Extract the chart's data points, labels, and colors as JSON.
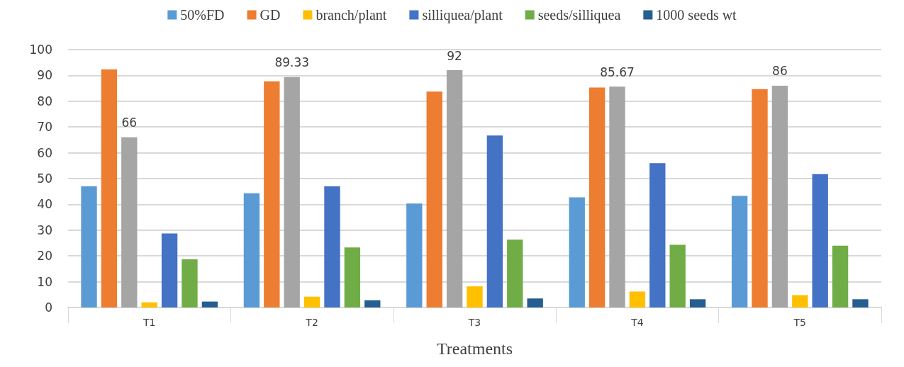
{
  "chart_data": {
    "type": "bar",
    "xlabel": "Treatments",
    "categories": [
      "T1",
      "T2",
      "T3",
      "T4",
      "T5"
    ],
    "series": [
      {
        "name": "50%FD",
        "color": "#5b9bd5",
        "values": [
          47,
          44.3,
          40.3,
          42.7,
          43.3
        ]
      },
      {
        "name": "GD",
        "color": "#ed7d31",
        "values": [
          92.3,
          87.7,
          83.7,
          85.3,
          84.7
        ]
      },
      {
        "color": "#a5a5a5",
        "values": [
          66,
          89.33,
          92,
          85.67,
          86
        ],
        "value_labels": [
          "66",
          "89.33",
          "92",
          "85.67",
          "86"
        ]
      },
      {
        "name": "branch/plant",
        "color": "#ffc000",
        "values": [
          2,
          4.2,
          8.2,
          6.2,
          4.8
        ]
      },
      {
        "name": "silliquea/plant",
        "color": "#4472c4",
        "values": [
          28.7,
          47,
          66.7,
          56,
          51.7
        ]
      },
      {
        "name": "seeds/silliquea",
        "color": "#70ad47",
        "values": [
          18.7,
          23.3,
          26.3,
          24.3,
          24
        ]
      },
      {
        "name": "1000 seeds wt",
        "color": "#255e91",
        "values": [
          2.3,
          2.8,
          3.5,
          3.2,
          3.2
        ]
      }
    ],
    "ylim": [
      0,
      100
    ],
    "yticks": [
      0,
      10,
      20,
      30,
      40,
      50,
      60,
      70,
      80,
      90,
      100
    ],
    "grid": "y",
    "legend": "top"
  }
}
